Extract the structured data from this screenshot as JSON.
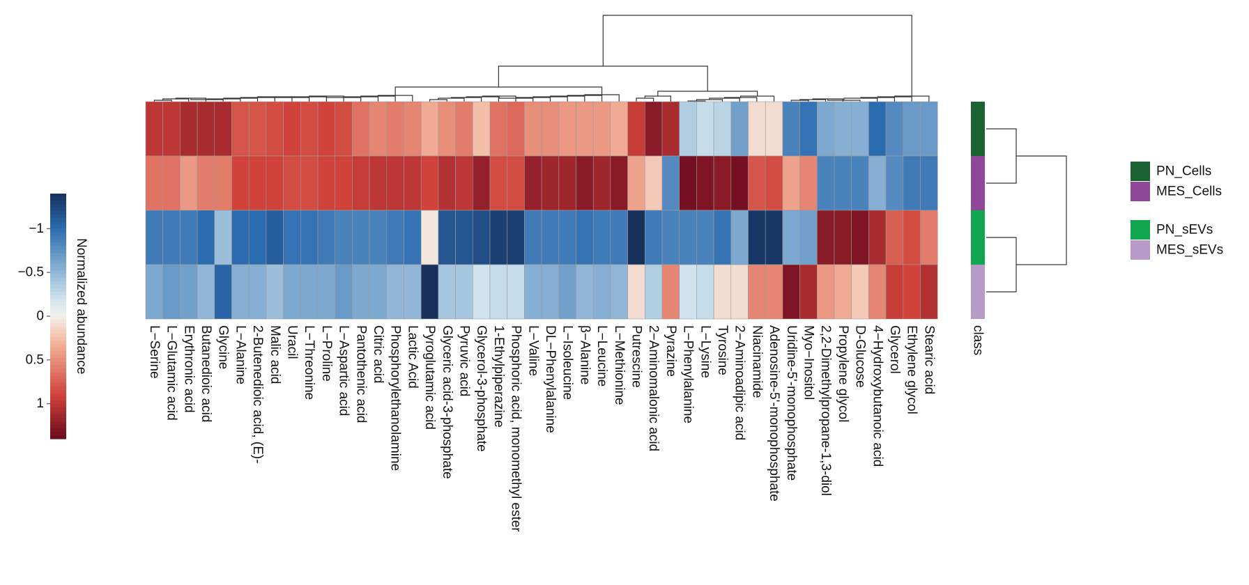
{
  "chart_data": {
    "type": "heatmap",
    "title": "",
    "colorbar": {
      "label": "Normalized abundance",
      "ticks": [
        "−1",
        "−0.5",
        "0",
        "0.5",
        "1"
      ],
      "tick_values": [
        -1,
        -0.5,
        0,
        0.5,
        1
      ],
      "range": [
        -1.4,
        1.4
      ],
      "scale": "red-white-blue (positive = red, negative = blue)",
      "colors": {
        "low": "#17305c",
        "mid_low": "#2b6cb0",
        "light_low": "#cfe3ee",
        "mid": "#f3f0ec",
        "light_high": "#f4b59c",
        "mid_high": "#d0423a",
        "high": "#6b0a1f"
      }
    },
    "columns": [
      "L−Serine",
      "L−Glutamic acid",
      "Erythronic acid",
      "Butanedioic acid",
      "Glycine",
      "L−Alanine",
      "2-Butenedioic acid, (E)-",
      "Malic acid",
      "Uracil",
      "L−Threonine",
      "L−Proline",
      "L−Aspartic acid",
      "Pantothenic acid",
      "Citric acid",
      "Phosphorylethanolamine",
      "Lactic Acid",
      "Pyroglutamic acid",
      "Glyceric acid-3-phosphate",
      "Pyruvic acid",
      "Glycerol-3-phosphate",
      "1-Ethylpiperazine",
      "Phosphoric acid, monomethyl ester",
      "L−Valine",
      "DL−Phenylalanine",
      "L−Isoleucine",
      "β−Alanine",
      "L−Leucine",
      "L−Methionine",
      "Putrescine",
      "2−Aminomalonic acid",
      "Pyrazine",
      "L−Phenylalanine",
      "L−Lysine",
      "Tyrosine",
      "2−Aminoadipic acid",
      "Niacinamide",
      "Adenosine-5'-monophosphate",
      "Uridine-5'-monophosphate",
      "Myo−Inositol",
      "2,2-Dimethylpropane-1,3-diol",
      "Propylene glycol",
      "D-Glucose",
      "4−Hydroxybutanoic acid",
      "Glycerol",
      "Ethylene glycol",
      "Stearic acid"
    ],
    "class_label": "class",
    "rows": [
      {
        "name": "PN_Cells",
        "class_color": "#1a6232",
        "values": [
          1.0,
          1.0,
          1.1,
          1.1,
          1.1,
          0.8,
          0.8,
          0.85,
          0.9,
          0.85,
          0.9,
          0.85,
          0.65,
          0.55,
          0.6,
          0.55,
          0.35,
          0.5,
          0.6,
          0.25,
          0.65,
          0.7,
          0.5,
          0.5,
          0.45,
          0.45,
          0.45,
          0.35,
          0.95,
          1.25,
          1.1,
          -0.35,
          -0.25,
          -0.3,
          -0.65,
          0.1,
          0.1,
          -0.85,
          -0.95,
          -0.6,
          -0.55,
          -0.55,
          -1.0,
          -0.8,
          -0.7,
          -0.7
        ]
      },
      {
        "name": "MES_Cells",
        "class_color": "#8e4799",
        "values": [
          0.65,
          0.65,
          0.45,
          0.6,
          0.6,
          0.9,
          0.9,
          0.9,
          0.85,
          0.85,
          0.9,
          0.9,
          0.95,
          1.0,
          1.0,
          1.0,
          0.9,
          1.05,
          1.0,
          1.2,
          0.85,
          0.85,
          1.2,
          1.15,
          1.15,
          1.25,
          1.15,
          1.25,
          0.4,
          0.2,
          -0.8,
          1.35,
          1.3,
          1.25,
          1.35,
          0.8,
          0.85,
          0.4,
          0.55,
          -0.85,
          -0.85,
          -0.85,
          -0.55,
          -0.8,
          -0.9,
          -0.9
        ]
      },
      {
        "name": "PN_sEVs",
        "class_color": "#12a650",
        "values": [
          -0.9,
          -0.9,
          -0.9,
          -1.0,
          -0.45,
          -1.0,
          -1.0,
          -1.1,
          -0.95,
          -0.95,
          -0.9,
          -0.85,
          -0.85,
          -0.85,
          -0.9,
          -0.95,
          0.05,
          -1.15,
          -1.15,
          -1.2,
          -1.3,
          -1.3,
          -0.9,
          -0.9,
          -0.9,
          -0.95,
          -0.9,
          -0.9,
          -1.4,
          -0.9,
          -0.85,
          -0.85,
          -0.85,
          -0.95,
          -0.6,
          -1.35,
          -1.35,
          -0.6,
          -0.65,
          1.25,
          1.25,
          1.3,
          1.1,
          0.75,
          0.85,
          0.6
        ]
      },
      {
        "name": "MES_sEVs",
        "class_color": "#b89ac9",
        "values": [
          -0.6,
          -0.7,
          -0.65,
          -0.5,
          -1.05,
          -0.55,
          -0.55,
          -0.45,
          -0.6,
          -0.6,
          -0.6,
          -0.7,
          -0.6,
          -0.6,
          -0.5,
          -0.5,
          -1.4,
          -0.4,
          -0.4,
          -0.2,
          -0.25,
          -0.25,
          -0.55,
          -0.55,
          -0.65,
          -0.5,
          -0.55,
          -0.5,
          0.1,
          -0.35,
          0.55,
          -0.2,
          -0.25,
          0.1,
          0.1,
          0.55,
          0.55,
          1.3,
          1.1,
          0.45,
          0.35,
          0.2,
          0.55,
          0.95,
          0.9,
          1.05
        ]
      }
    ],
    "legend": {
      "placement": "right",
      "items": [
        {
          "label": "PN_Cells",
          "color": "#1a6232"
        },
        {
          "label": "MES_Cells",
          "color": "#8e4799"
        },
        {
          "label": "PN_sEVs",
          "color": "#12a650"
        },
        {
          "label": "MES_sEVs",
          "color": "#b89ac9"
        }
      ]
    },
    "dendrograms": {
      "column": "top",
      "row": "right"
    }
  }
}
